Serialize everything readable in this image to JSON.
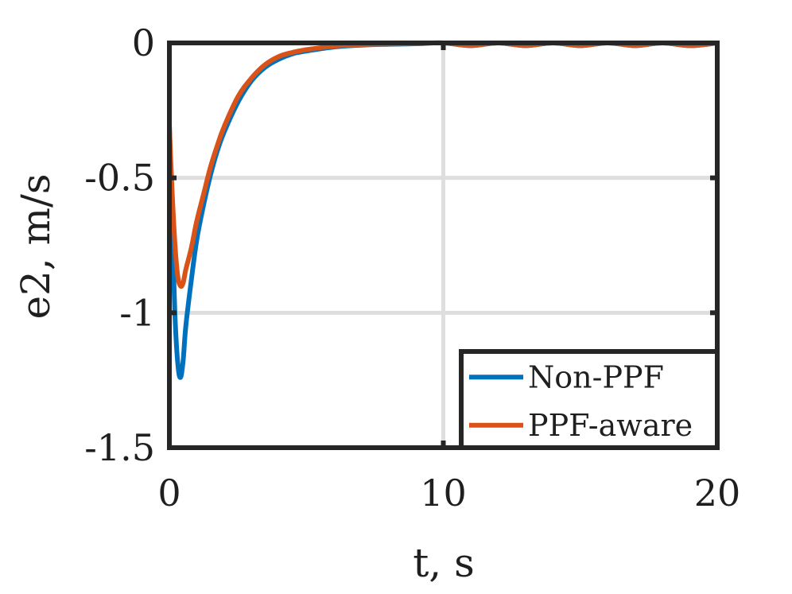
{
  "chart_data": {
    "type": "line",
    "title": "",
    "xlabel": "t, s",
    "ylabel": "e2, m/s",
    "xlim": [
      0,
      20
    ],
    "ylim": [
      -1.5,
      0
    ],
    "xticks": [
      "0",
      "10",
      "20"
    ],
    "xtick_values": [
      0,
      10,
      20
    ],
    "yticks": [
      "0",
      "-0.5",
      "-1",
      "-1.5"
    ],
    "ytick_values": [
      0,
      -0.5,
      -1,
      -1.5
    ],
    "grid": true,
    "legend_position": "bottom-right",
    "series": [
      {
        "name": "Non-PPF",
        "color": "#0072BD",
        "x": [
          0,
          0.1,
          0.2,
          0.3,
          0.4,
          0.5,
          0.6,
          0.8,
          1.0,
          1.25,
          1.5,
          1.75,
          2.0,
          2.5,
          3.0,
          3.5,
          4.0,
          4.5,
          5.0,
          6.0,
          7.0,
          8.0,
          9.0,
          10.0,
          11.0,
          12.0,
          13.0,
          14.0,
          15.0,
          16.0,
          17.0,
          18.0,
          19.0,
          20.0
        ],
        "y": [
          -0.3,
          -0.68,
          -1.0,
          -1.18,
          -1.24,
          -1.18,
          -1.05,
          -0.88,
          -0.73,
          -0.6,
          -0.49,
          -0.4,
          -0.33,
          -0.22,
          -0.14,
          -0.09,
          -0.06,
          -0.04,
          -0.03,
          -0.015,
          -0.008,
          -0.005,
          -0.003,
          0.0,
          -0.01,
          0.0,
          -0.01,
          0.0,
          -0.01,
          0.0,
          -0.01,
          0.0,
          -0.01,
          0.0
        ]
      },
      {
        "name": "PPF-aware",
        "color": "#D95319",
        "x": [
          0,
          0.1,
          0.2,
          0.3,
          0.4,
          0.5,
          0.6,
          0.8,
          1.0,
          1.25,
          1.5,
          1.75,
          2.0,
          2.5,
          3.0,
          3.5,
          4.0,
          4.5,
          5.0,
          6.0,
          7.0,
          8.0,
          9.0,
          10.0,
          11.0,
          12.0,
          13.0,
          14.0,
          15.0,
          16.0,
          17.0,
          18.0,
          19.0,
          20.0
        ],
        "y": [
          -0.31,
          -0.55,
          -0.74,
          -0.86,
          -0.9,
          -0.89,
          -0.84,
          -0.76,
          -0.66,
          -0.56,
          -0.46,
          -0.38,
          -0.31,
          -0.2,
          -0.13,
          -0.08,
          -0.05,
          -0.035,
          -0.025,
          -0.012,
          -0.006,
          -0.004,
          -0.002,
          0.0,
          -0.01,
          0.0,
          -0.01,
          0.0,
          -0.01,
          0.0,
          -0.01,
          0.0,
          -0.01,
          0.0
        ]
      }
    ]
  }
}
